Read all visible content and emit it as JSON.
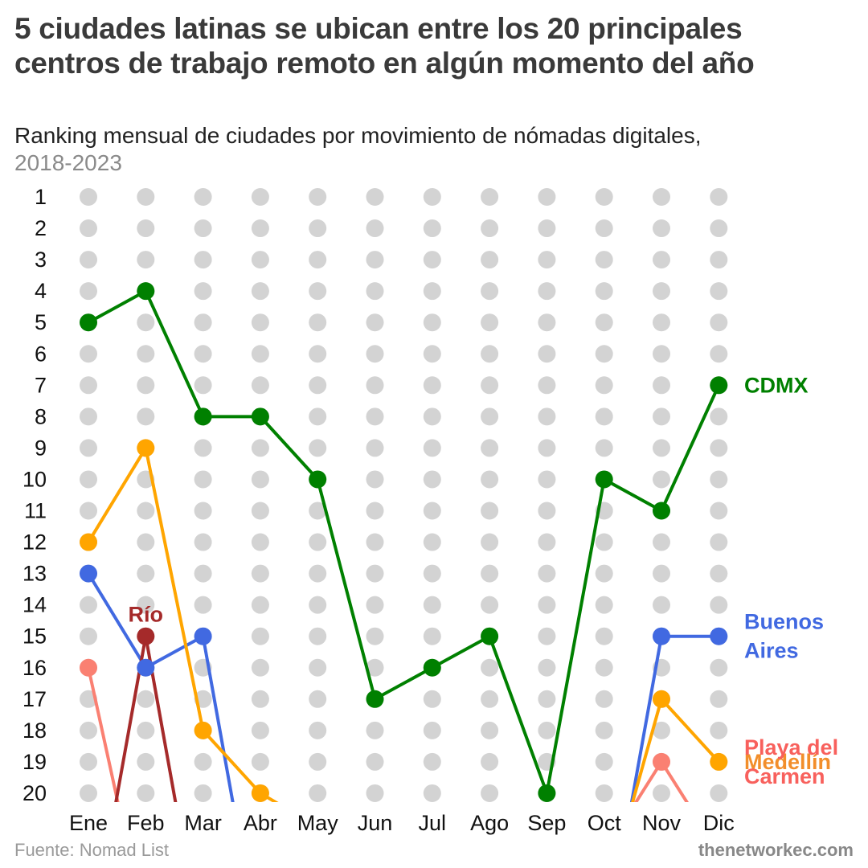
{
  "header": {
    "title": "5 ciudades latinas se ubican entre los 20 principales centros de trabajo remoto en algún momento del año",
    "subtitle": "Ranking mensual de ciudades por movimiento de nómadas digitales,",
    "subtitle_years": "2018-2023"
  },
  "footer": {
    "source": "Fuente: Nomad List",
    "brand": "thenetworkec.com"
  },
  "chart_data": {
    "type": "line",
    "title": "5 ciudades latinas se ubican entre los 20 principales centros de trabajo remoto en algún momento del año",
    "subtitle": "Ranking mensual de ciudades por movimiento de nómadas digitales, 2018-2023",
    "categories": [
      "Ene",
      "Feb",
      "Mar",
      "Abr",
      "May",
      "Jun",
      "Jul",
      "Ago",
      "Sep",
      "Oct",
      "Nov",
      "Dic"
    ],
    "y_ticks": [
      "1",
      "2",
      "3",
      "4",
      "5",
      "6",
      "7",
      "8",
      "9",
      "10",
      "11",
      "12",
      "13",
      "14",
      "15",
      "16",
      "17",
      "18",
      "19",
      "20"
    ],
    "ylim": [
      1,
      20
    ],
    "y_inverted": true,
    "grid": "dot-matrix",
    "background_dot_color": "#d3d3d3",
    "series": [
      {
        "name": "CDMX",
        "label_lines": [
          "CDMX"
        ],
        "color": "#008000",
        "label_position": "right",
        "values": [
          5,
          4,
          8,
          8,
          10,
          17,
          16,
          15,
          20,
          10,
          11,
          7
        ]
      },
      {
        "name": "Buenos Aires",
        "label_lines": [
          "Buenos",
          "Aires"
        ],
        "color": "#4169e1",
        "label_position": "right",
        "values": [
          13,
          16,
          15,
          null,
          null,
          null,
          null,
          null,
          null,
          null,
          15,
          15
        ]
      },
      {
        "name": "Medellín",
        "label_lines": [
          "Medellín"
        ],
        "color": "#ffa500",
        "label_position": "right",
        "values": [
          12,
          9,
          18,
          20,
          null,
          null,
          null,
          null,
          null,
          null,
          17,
          19
        ]
      },
      {
        "name": "Playa del Carmen",
        "label_lines": [
          "Playa del",
          "Carmen"
        ],
        "color": "#fa8072",
        "label_position": "right",
        "values": [
          16,
          null,
          null,
          null,
          null,
          null,
          null,
          null,
          null,
          null,
          19,
          null
        ]
      },
      {
        "name": "Río",
        "label_lines": [
          "Río"
        ],
        "color": "#a52a2a",
        "label_position": "above",
        "values": [
          null,
          15,
          null,
          null,
          null,
          null,
          null,
          null,
          null,
          null,
          null,
          null
        ]
      }
    ],
    "label_colors": {
      "CDMX": "#008000",
      "Buenos Aires": "#4169e1",
      "Medellín": "#f28e2b",
      "Playa del Carmen": "#f8605c",
      "Río": "#a52a2a"
    }
  }
}
